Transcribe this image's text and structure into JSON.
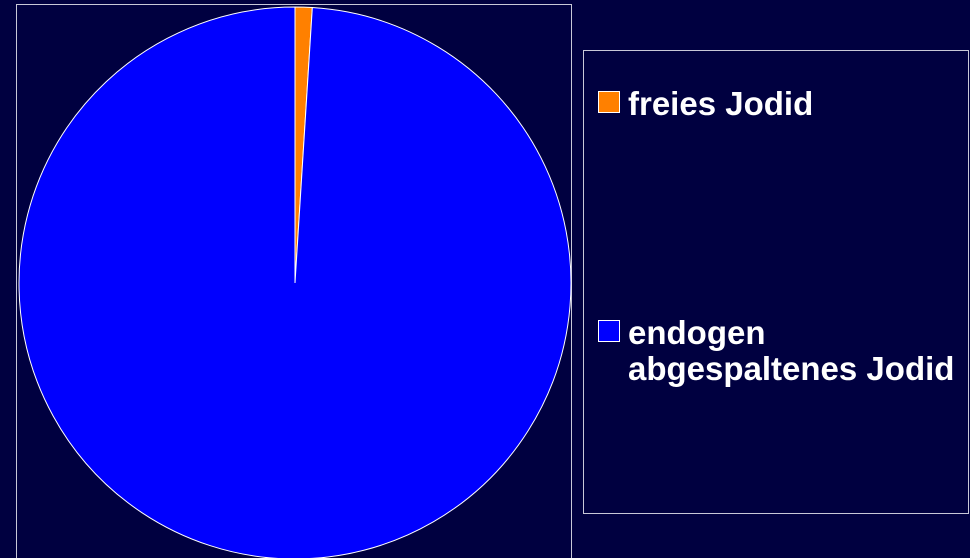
{
  "chart_data": {
    "type": "pie",
    "title": "",
    "slices": [
      {
        "label": "freies Jodid",
        "value": 1,
        "color": "#ff8000"
      },
      {
        "label": "endogen abgespaltenes Jodid",
        "value": 99,
        "color": "#0000ff"
      }
    ],
    "start_angle": "12 o'clock",
    "direction": "clockwise",
    "legend_placement": "right"
  },
  "colors": {
    "background": "#000040",
    "border": "#c8c8d8",
    "text": "#ffffff"
  }
}
